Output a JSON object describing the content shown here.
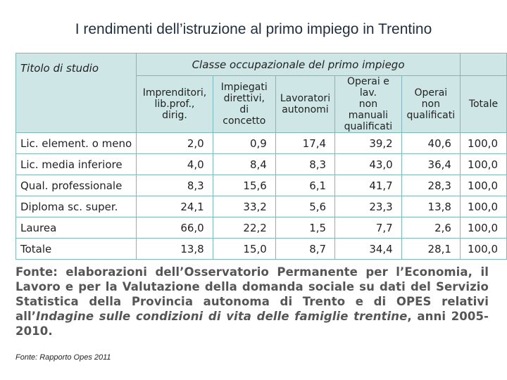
{
  "header": {
    "title": "I rendimenti dell’istruzione al primo impiego in Trentino"
  },
  "table": {
    "group_header": "Classe occupazionale del primo impiego",
    "row_header": "Titolo di studio",
    "columns": [
      "Imprenditori,\nlib.prof., dirig.",
      "Impiegati\ndirettivi,\ndi concetto",
      "Lavoratori\nautonomi",
      "Operai e lav.\nnon manuali\nqualificati",
      "Operai non\nqualificati",
      "Totale"
    ],
    "rows": [
      {
        "label": "Lic. element. o meno",
        "cells": [
          "2,0",
          "0,9",
          "17,4",
          "39,2",
          "40,6",
          "100,0"
        ]
      },
      {
        "label": "Lic. media inferiore",
        "cells": [
          "4,0",
          "8,4",
          "8,3",
          "43,0",
          "36,4",
          "100,0"
        ]
      },
      {
        "label": "Qual. professionale",
        "cells": [
          "8,3",
          "15,6",
          "6,1",
          "41,7",
          "28,3",
          "100,0"
        ]
      },
      {
        "label": "Diploma sc. super.",
        "cells": [
          "24,1",
          "33,2",
          "5,6",
          "23,3",
          "13,8",
          "100,0"
        ]
      },
      {
        "label": "Laurea",
        "cells": [
          "66,0",
          "22,2",
          "1,5",
          "7,7",
          "2,6",
          "100,0"
        ]
      },
      {
        "label": "Totale",
        "cells": [
          "13,8",
          "15,0",
          "8,7",
          "34,4",
          "28,1",
          "100,0"
        ]
      }
    ]
  },
  "source": {
    "text": "Fonte: elaborazioni dell’Osservatorio Permanente per l’Economia, il Lavoro e per la Valutazione della domanda sociale su dati del Servizio Statistica della Provincia autonoma di Trento e di OPES relativi all’",
    "italic": "Indagine sulle condizioni di vita delle famiglie trentine",
    "end": ", anni 2005-2010."
  },
  "footer": {
    "note": "Fonte: Rapporto Opes 2011"
  }
}
